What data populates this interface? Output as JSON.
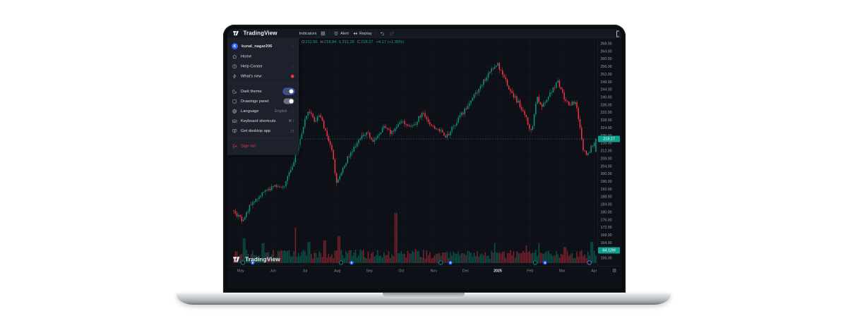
{
  "app": {
    "name": "TradingView"
  },
  "header": {
    "logo_text": "TradingView",
    "indicators_label": "Indicators",
    "alert_label": "Alert",
    "replay_label": "Replay"
  },
  "menu": {
    "user": {
      "initial": "K",
      "username": "kunal_nagar206"
    },
    "items_top": [
      {
        "id": "home",
        "icon": "home",
        "label": "Home"
      },
      {
        "id": "help-center",
        "icon": "help",
        "label": "Help Center",
        "chevron": true
      },
      {
        "id": "whats-new",
        "icon": "bolt",
        "label": "What's new",
        "dot": true
      }
    ],
    "items_mid": [
      {
        "id": "dark-theme",
        "icon": "moon",
        "label": "Dark theme",
        "toggle": "on-focused"
      },
      {
        "id": "drawings-panel",
        "icon": "panel",
        "label": "Drawings panel",
        "toggle": "on"
      },
      {
        "id": "language",
        "icon": "globe",
        "label": "Language",
        "hint": "English",
        "chevron": true
      },
      {
        "id": "keyboard-shortcuts",
        "icon": "keyboard",
        "label": "Keyboard shortcuts",
        "hint": "⌘ /"
      },
      {
        "id": "get-desktop-app",
        "icon": "desktop",
        "label": "Get desktop app",
        "external": true
      }
    ],
    "sign_out": {
      "id": "sign-out",
      "icon": "signout",
      "label": "Sign out"
    }
  },
  "legend": {
    "parts": [
      {
        "k": "O",
        "v": "211.56"
      },
      {
        "k": "H",
        "v": "218.84"
      },
      {
        "k": "L",
        "v": "211.28"
      },
      {
        "k": "C",
        "v": "218.27"
      }
    ],
    "change": "+4.17 (+1.95%)"
  },
  "watermark": {
    "text": "TradingView"
  },
  "chart_data": {
    "type": "candlestick",
    "y_axis": {
      "min": 156,
      "max": 268,
      "step": 4,
      "tick_labels": [
        "268.00",
        "264.00",
        "260.00",
        "256.00",
        "252.00",
        "248.00",
        "244.00",
        "240.00",
        "236.00",
        "232.00",
        "228.00",
        "224.00",
        "220.00",
        "216.00",
        "212.00",
        "208.00",
        "204.00",
        "200.00",
        "196.00",
        "192.00",
        "188.00",
        "184.00",
        "180.00",
        "176.00",
        "172.00",
        "168.00",
        "164.00",
        "160.00",
        "156.00"
      ]
    },
    "x_axis": {
      "ticks": [
        {
          "label": "May",
          "f": 0.021
        },
        {
          "label": "Jun",
          "f": 0.11
        },
        {
          "label": "Jul",
          "f": 0.198
        },
        {
          "label": "Aug",
          "f": 0.287
        },
        {
          "label": "Sep",
          "f": 0.375
        },
        {
          "label": "Oct",
          "f": 0.463
        },
        {
          "label": "Nov",
          "f": 0.552
        },
        {
          "label": "Dec",
          "f": 0.64
        },
        {
          "label": "2025",
          "f": 0.728,
          "emphasis": true
        },
        {
          "label": "Feb",
          "f": 0.817
        },
        {
          "label": "Mar",
          "f": 0.905
        },
        {
          "label": "Apr",
          "f": 0.993
        }
      ]
    },
    "last_price": "218.27",
    "last_volume": "64.12M",
    "current_candle": {
      "open": 211.56,
      "high": 218.84,
      "low": 211.28,
      "close": 218.27
    },
    "price_line": 218.27,
    "n_candles": 230,
    "price_path_anchors": [
      [
        0,
        181
      ],
      [
        0.029,
        176
      ],
      [
        0.06,
        186
      ],
      [
        0.089,
        190
      ],
      [
        0.115,
        194
      ],
      [
        0.14,
        192
      ],
      [
        0.169,
        204
      ],
      [
        0.194,
        222
      ],
      [
        0.21,
        234
      ],
      [
        0.225,
        228
      ],
      [
        0.245,
        230
      ],
      [
        0.26,
        222
      ],
      [
        0.276,
        213
      ],
      [
        0.289,
        196
      ],
      [
        0.311,
        205
      ],
      [
        0.33,
        212
      ],
      [
        0.35,
        218
      ],
      [
        0.371,
        222
      ],
      [
        0.39,
        216
      ],
      [
        0.419,
        224
      ],
      [
        0.439,
        221
      ],
      [
        0.47,
        227
      ],
      [
        0.501,
        225
      ],
      [
        0.524,
        232
      ],
      [
        0.544,
        226
      ],
      [
        0.565,
        224
      ],
      [
        0.59,
        219
      ],
      [
        0.61,
        225
      ],
      [
        0.629,
        230
      ],
      [
        0.66,
        239
      ],
      [
        0.689,
        247
      ],
      [
        0.715,
        254
      ],
      [
        0.73,
        258
      ],
      [
        0.75,
        250
      ],
      [
        0.771,
        242
      ],
      [
        0.79,
        237
      ],
      [
        0.81,
        229
      ],
      [
        0.825,
        222
      ],
      [
        0.841,
        240
      ],
      [
        0.854,
        236
      ],
      [
        0.87,
        240
      ],
      [
        0.885,
        245
      ],
      [
        0.899,
        248
      ],
      [
        0.915,
        240
      ],
      [
        0.93,
        236
      ],
      [
        0.946,
        238
      ],
      [
        0.955,
        228
      ],
      [
        0.965,
        215
      ],
      [
        0.975,
        209
      ],
      [
        0.985,
        212
      ],
      [
        1,
        218.3
      ]
    ],
    "volume_spikes": [
      [
        0.03,
        70,
        1
      ],
      [
        0.082,
        56,
        1
      ],
      [
        0.171,
        100,
        -1
      ],
      [
        0.21,
        60,
        1
      ],
      [
        0.252,
        64,
        -1
      ],
      [
        0.291,
        76,
        -1
      ],
      [
        0.447,
        142,
        -1
      ],
      [
        0.502,
        40,
        -1
      ],
      [
        0.719,
        56,
        1
      ],
      [
        0.806,
        50,
        -1
      ],
      [
        0.841,
        56,
        1
      ],
      [
        0.913,
        46,
        -1
      ],
      [
        0.986,
        60,
        1
      ]
    ],
    "event_markers": [
      {
        "f": 0.027,
        "kind": "teal"
      },
      {
        "f": 0.054,
        "kind": "blue"
      },
      {
        "f": 0.297,
        "kind": "teal"
      },
      {
        "f": 0.326,
        "kind": "blue"
      },
      {
        "f": 0.571,
        "kind": "teal"
      },
      {
        "f": 0.598,
        "kind": "blue"
      },
      {
        "f": 0.831,
        "kind": "teal"
      },
      {
        "f": 0.858,
        "kind": "blue"
      },
      {
        "f": 0.98,
        "kind": "purple"
      }
    ],
    "colors": {
      "up": "#089981",
      "down": "#f23645",
      "badge": "#0ea08f",
      "accent_blue": "#2962ff",
      "danger": "#f23645",
      "purple": "#9b7bd1",
      "grid": "rgba(255,255,255,0.045)"
    }
  }
}
